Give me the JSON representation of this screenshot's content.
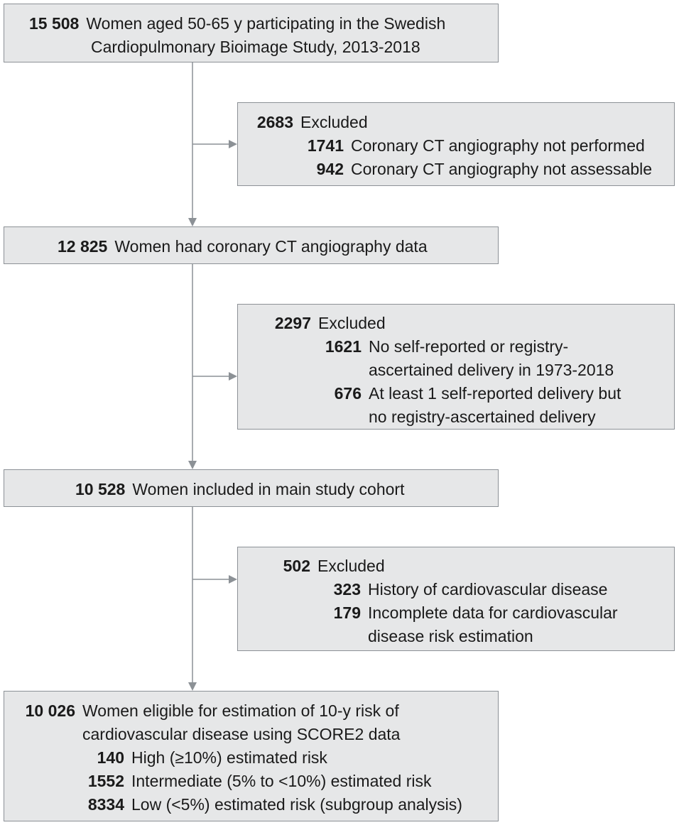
{
  "boxes": {
    "start": {
      "num": "15 508",
      "text": "Women aged 50-65 y participating in the Swedish",
      "text2": "Cardiopulmonary Bioimage Study, 2013-2018"
    },
    "ex1": {
      "num": "2683",
      "text": "Excluded",
      "items": [
        {
          "num": "1741",
          "text": "Coronary CT angiography not performed"
        },
        {
          "num": "942",
          "text": "Coronary CT angiography not assessable"
        }
      ]
    },
    "mid1": {
      "num": "12 825",
      "text": "Women had coronary CT angiography data"
    },
    "ex2": {
      "num": "2297",
      "text": "Excluded",
      "items": [
        {
          "num": "1621",
          "text": "No self-reported or registry-",
          "text2": "ascertained delivery in 1973-2018"
        },
        {
          "num": "676",
          "text": "At least 1 self-reported delivery but",
          "text2": "no registry-ascertained delivery"
        }
      ]
    },
    "mid2": {
      "num": "10 528",
      "text": "Women included in main study cohort"
    },
    "ex3": {
      "num": "502",
      "text": "Excluded",
      "items": [
        {
          "num": "323",
          "text": "History of cardiovascular disease"
        },
        {
          "num": "179",
          "text": "Incomplete data for cardiovascular",
          "text2": "disease risk estimation"
        }
      ]
    },
    "final": {
      "num": "10 026",
      "text": "Women eligible for estimation of 10-y risk of",
      "text2": "cardiovascular disease using SCORE2 data",
      "items": [
        {
          "num": "140",
          "text": "High (≥10%) estimated risk"
        },
        {
          "num": "1552",
          "text": "Intermediate (5% to <10%) estimated risk"
        },
        {
          "num": "8334",
          "text": "Low (<5%) estimated risk (subgroup analysis)"
        }
      ]
    }
  },
  "colors": {
    "box_fill": "#e6e7e8",
    "box_border": "#8c9196",
    "arrow": "#8c9196"
  }
}
